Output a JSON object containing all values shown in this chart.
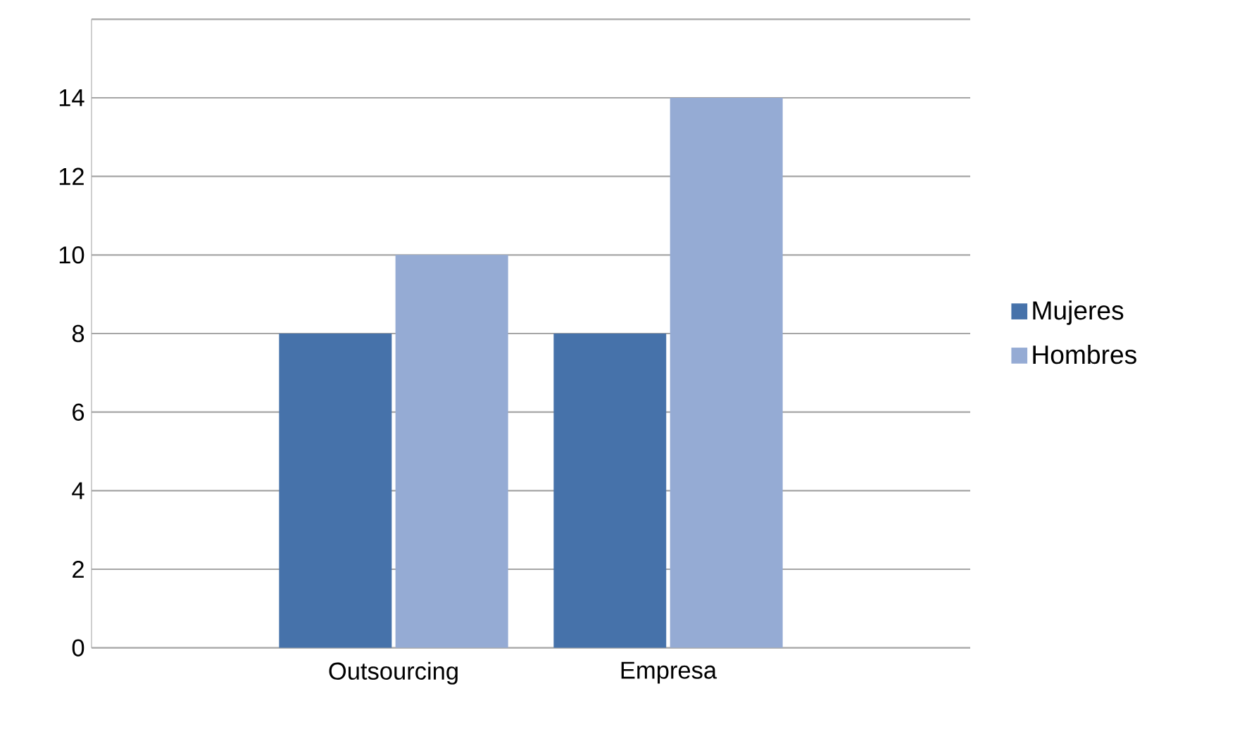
{
  "chart_data": {
    "type": "bar",
    "categories": [
      "Outsourcing",
      "Empresa"
    ],
    "series": [
      {
        "name": "Mujeres",
        "color": "#4672aa",
        "values": [
          8,
          8
        ]
      },
      {
        "name": "Hombres",
        "color": "#95abd4",
        "values": [
          10,
          14
        ]
      }
    ],
    "ylim": [
      0,
      16
    ],
    "yticks": [
      0,
      2,
      4,
      6,
      8,
      10,
      12,
      14,
      {
        "value": 16,
        "label": null
      }
    ],
    "grid": "y",
    "legend": "right"
  }
}
